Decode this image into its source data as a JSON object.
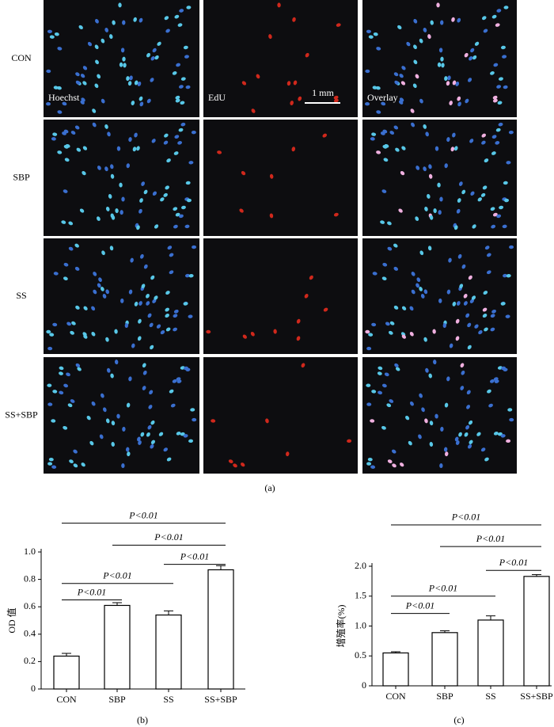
{
  "panel_a": {
    "rows": [
      "CON",
      "SBP",
      "SS",
      "SS+SBP"
    ],
    "channels": [
      "Hoechst",
      "EdU",
      "Overlay"
    ],
    "scale_bar": "1 mm",
    "caption": "(a)"
  },
  "chart_data": [
    {
      "type": "bar",
      "caption": "(b)",
      "y_label": "OD 值",
      "categories": [
        "CON",
        "SBP",
        "SS",
        "SS+SBP"
      ],
      "values": [
        0.24,
        0.61,
        0.54,
        0.87
      ],
      "errors": [
        0.02,
        0.02,
        0.03,
        0.03
      ],
      "color": "#ffffff",
      "ylim": [
        0,
        1.0
      ],
      "yticks": [
        0,
        0.2,
        0.4,
        0.6,
        0.8,
        {
          "value": 1.0,
          "label": "1.0"
        }
      ],
      "annotations": [
        "P<0.01",
        "P<0.01",
        "P<0.01",
        "P<0.01",
        "P<0.01"
      ]
    },
    {
      "type": "bar",
      "caption": "(c)",
      "y_label": "增殖率(%)",
      "categories": [
        "CON",
        "SBP",
        "SS",
        "SS+SBP"
      ],
      "values": [
        0.55,
        0.89,
        1.1,
        1.83
      ],
      "errors": [
        0.02,
        0.03,
        0.07,
        0.03
      ],
      "color": "#ffffff",
      "ylim": [
        0,
        2.0
      ],
      "yticks": [
        0,
        0.5,
        {
          "value": 1.0,
          "label": "1.0"
        },
        1.5,
        {
          "value": 2.0,
          "label": "2.0"
        }
      ],
      "annotations": [
        "P<0.01",
        "P<0.01",
        "P<0.01",
        "P<0.01",
        "P<0.01"
      ]
    }
  ]
}
